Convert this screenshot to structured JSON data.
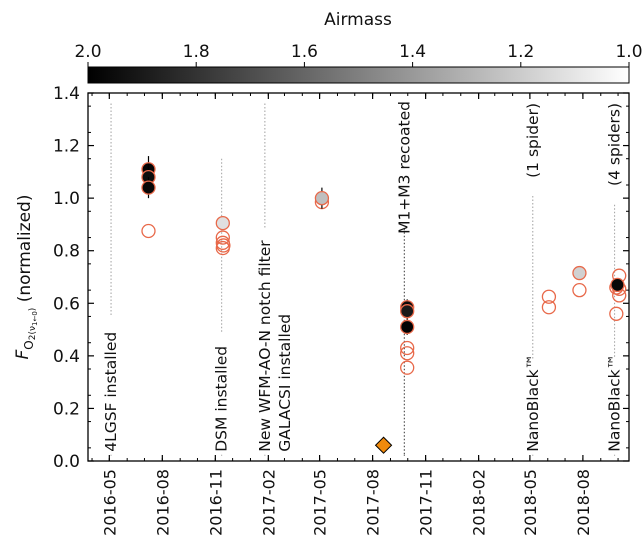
{
  "chart_data": {
    "type": "scatter",
    "title": "",
    "xlabel": "",
    "ylabel_main": "F",
    "ylabel_sub": "O",
    "ylabel_sub2": "2(ν",
    "ylabel_sub3": "1←0",
    "ylabel_sub4": ")",
    "ylabel_suffix": " (normalized)",
    "ylim": [
      0.0,
      1.4
    ],
    "yticks": [
      "0.0",
      "0.2",
      "0.4",
      "0.6",
      "0.8",
      "1.0",
      "1.2",
      "1.4"
    ],
    "xticks": [
      {
        "label": "2016-05",
        "date": "2016-05-01"
      },
      {
        "label": "2016-08",
        "date": "2016-08-01"
      },
      {
        "label": "2016-11",
        "date": "2016-11-01"
      },
      {
        "label": "2017-02",
        "date": "2017-02-01"
      },
      {
        "label": "2017-05",
        "date": "2017-05-01"
      },
      {
        "label": "2017-08",
        "date": "2017-08-01"
      },
      {
        "label": "2017-11",
        "date": "2017-11-01"
      },
      {
        "label": "2018-02",
        "date": "2018-02-01"
      },
      {
        "label": "2018-05",
        "date": "2018-05-01"
      },
      {
        "label": "2018-08",
        "date": "2018-08-01"
      }
    ],
    "xlim": [
      "2016-03-25",
      "2018-10-20"
    ],
    "colorbar": {
      "label": "Airmass",
      "ticks": [
        "2.0",
        "1.8",
        "1.6",
        "1.4",
        "1.2",
        "1.0"
      ],
      "range": [
        2.0,
        1.0
      ]
    },
    "grid": false,
    "events": [
      {
        "date": "2016-05-04",
        "text": "4LGSF installed",
        "ymin": 0.02,
        "ymax": 1.36
      },
      {
        "date": "2016-11-12",
        "text": "DSM installed",
        "ymin": 0.02,
        "ymax": 1.15
      },
      {
        "date": "2017-01-26",
        "text": "New WFM-AO-N notch filter",
        "text2": "GALACSI installed",
        "ymin": 0.02,
        "ymax": 1.36
      },
      {
        "date": "2017-09-25",
        "text": "M1+M3 recoated",
        "ymin": 0.02,
        "ymax": 0.82,
        "dark": true
      },
      {
        "date": "2018-05-06",
        "text": "NanoBlack™",
        "text_top": "(1 spider)",
        "ymin": 0.02,
        "ymax": 0.92
      },
      {
        "date": "2018-09-25",
        "text": "NanoBlack™",
        "text_top": "(4 spiders)",
        "ymin": 0.02,
        "ymax": 0.95
      }
    ],
    "series": [
      {
        "marker": "filled-circle",
        "points": [
          {
            "x": "2016-07-08",
            "y": 1.11,
            "airmass": 1.98,
            "err": 0.05
          },
          {
            "x": "2016-07-08",
            "y": 1.08,
            "airmass": 1.95,
            "err": 0.05
          },
          {
            "x": "2016-07-08",
            "y": 1.04,
            "airmass": 1.97,
            "err": 0.04
          },
          {
            "x": "2017-05-05",
            "y": 1.0,
            "airmass": 1.25,
            "err": 0.04
          },
          {
            "x": "2017-09-30",
            "y": 0.585,
            "airmass": 1.95,
            "err": 0.03
          },
          {
            "x": "2017-09-30",
            "y": 0.57,
            "airmass": 1.9,
            "err": 0.03
          },
          {
            "x": "2017-09-30",
            "y": 0.51,
            "airmass": 1.99,
            "err": 0.03
          },
          {
            "x": "2016-11-14",
            "y": 0.905,
            "airmass": 1.12,
            "err": 0.0
          },
          {
            "x": "2018-07-26",
            "y": 0.715,
            "airmass": 1.18,
            "err": 0.0
          },
          {
            "x": "2018-09-30",
            "y": 0.67,
            "airmass": 1.97,
            "err": 0.0
          }
        ]
      },
      {
        "marker": "open-circle",
        "color": "#e8694a",
        "points": [
          {
            "x": "2016-07-08",
            "y": 0.875
          },
          {
            "x": "2016-11-14",
            "y": 0.85
          },
          {
            "x": "2016-11-14",
            "y": 0.83
          },
          {
            "x": "2016-11-14",
            "y": 0.81
          },
          {
            "x": "2016-11-15",
            "y": 0.82
          },
          {
            "x": "2017-05-05",
            "y": 0.985
          },
          {
            "x": "2017-09-30",
            "y": 0.43
          },
          {
            "x": "2017-09-30",
            "y": 0.41
          },
          {
            "x": "2017-09-30",
            "y": 0.355
          },
          {
            "x": "2018-06-03",
            "y": 0.625
          },
          {
            "x": "2018-06-03",
            "y": 0.585
          },
          {
            "x": "2018-07-26",
            "y": 0.65
          },
          {
            "x": "2018-09-28",
            "y": 0.66
          },
          {
            "x": "2018-09-28",
            "y": 0.56
          },
          {
            "x": "2018-10-03",
            "y": 0.705
          },
          {
            "x": "2018-10-03",
            "y": 0.655
          },
          {
            "x": "2018-10-03",
            "y": 0.63
          }
        ]
      },
      {
        "marker": "diamond",
        "color": "#f08a0c",
        "points": [
          {
            "x": "2017-08-20",
            "y": 0.06
          }
        ]
      }
    ]
  }
}
